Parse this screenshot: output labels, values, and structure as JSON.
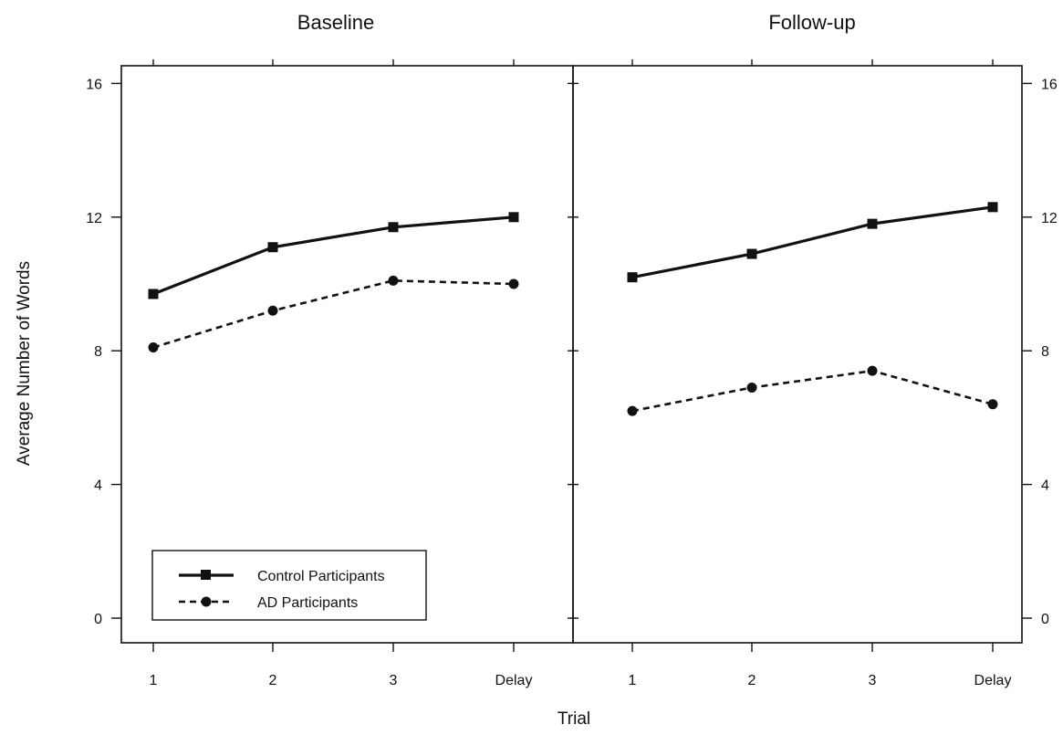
{
  "chart_data": {
    "type": "line",
    "ylabel": "Average Number of Words",
    "xlabel": "Trial",
    "categories": [
      "1",
      "2",
      "3",
      "Delay"
    ],
    "ylim": [
      0,
      16
    ],
    "yticks": [
      0,
      4,
      8,
      12,
      16
    ],
    "legend": {
      "placement": "bottom-left (in Baseline panel)"
    },
    "panels": [
      {
        "title": "Baseline",
        "series": [
          {
            "name": "Control Participants",
            "marker": "square",
            "style": "solid",
            "values": [
              9.7,
              11.1,
              11.7,
              12.0
            ]
          },
          {
            "name": "AD Participants",
            "marker": "circle",
            "style": "dashed",
            "values": [
              8.1,
              9.2,
              10.1,
              10.0
            ]
          }
        ]
      },
      {
        "title": "Follow-up",
        "series": [
          {
            "name": "Control Participants",
            "marker": "square",
            "style": "solid",
            "values": [
              10.2,
              10.9,
              11.8,
              12.3
            ]
          },
          {
            "name": "AD Participants",
            "marker": "circle",
            "style": "dashed",
            "values": [
              6.2,
              6.9,
              7.4,
              6.4
            ]
          }
        ]
      }
    ]
  }
}
